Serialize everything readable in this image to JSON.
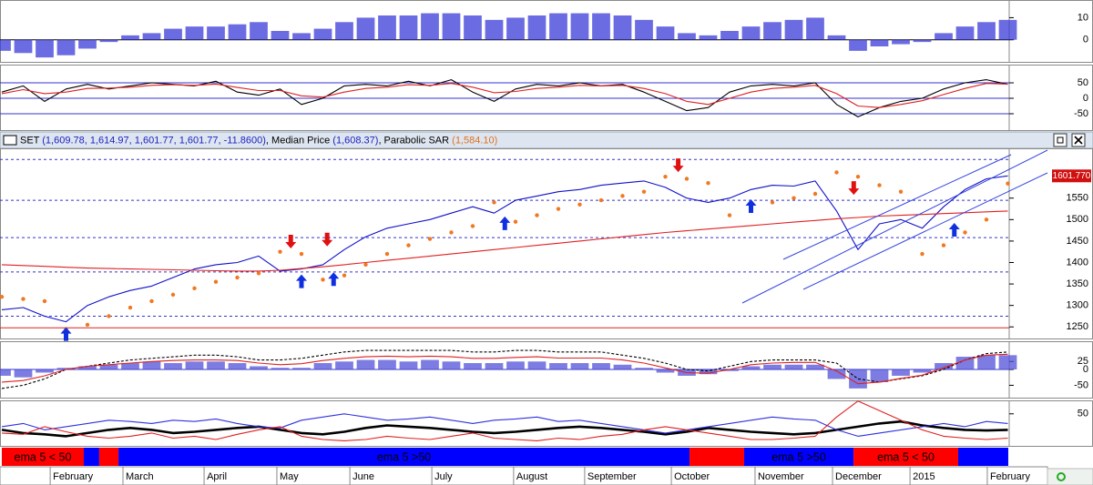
{
  "chart_data": [
    {
      "type": "bar",
      "ylim": [
        -10,
        18
      ],
      "yticks": [
        10,
        0
      ],
      "hlines": [
        {
          "value": 0,
          "color": "#000000"
        }
      ],
      "series": [
        {
          "color": "#3a3ad8",
          "style": "bars",
          "values": [
            -5,
            -6,
            -8,
            -7,
            -4,
            -1,
            2,
            3,
            5,
            6,
            6,
            7,
            8,
            4,
            3,
            5,
            8,
            10,
            11,
            11,
            12,
            12,
            11,
            9,
            10,
            11,
            12,
            12,
            12,
            11,
            9,
            6,
            3,
            2,
            4,
            6,
            8,
            9,
            10,
            2,
            -5,
            -3,
            -2,
            -1,
            3,
            6,
            8,
            9
          ]
        }
      ]
    },
    {
      "type": "line",
      "ylim": [
        -103,
        109
      ],
      "yticks": [
        50,
        0,
        -50
      ],
      "grid": true,
      "grid_color": "#3333cc",
      "series": [
        {
          "color": "#000000",
          "style": "line",
          "values": [
            20,
            40,
            -10,
            30,
            45,
            30,
            40,
            50,
            45,
            40,
            55,
            20,
            10,
            30,
            -20,
            0,
            40,
            45,
            40,
            55,
            40,
            60,
            20,
            -10,
            30,
            45,
            40,
            50,
            40,
            45,
            20,
            -10,
            -40,
            -30,
            20,
            40,
            45,
            40,
            50,
            -20,
            -60,
            -30,
            -10,
            0,
            30,
            50,
            60,
            45
          ]
        },
        {
          "color": "#e02020",
          "style": "line",
          "values": [
            15,
            28,
            15,
            20,
            32,
            33,
            36,
            42,
            44,
            42,
            46,
            35,
            25,
            25,
            8,
            4,
            20,
            32,
            36,
            44,
            42,
            48,
            36,
            18,
            22,
            32,
            36,
            42,
            40,
            42,
            32,
            15,
            -10,
            -20,
            0,
            20,
            32,
            36,
            42,
            15,
            -25,
            -30,
            -20,
            -8,
            12,
            32,
            48,
            46
          ]
        }
      ]
    },
    {
      "type": "line",
      "title_parts": [
        {
          "text": "SET",
          "color": "#000000"
        },
        {
          "text": " (1,609.78, 1,614.97, 1,601.77, 1,601.77, -11.8600)",
          "color": "#2020c0"
        },
        {
          "text": ", Median Price",
          "color": "#000000"
        },
        {
          "text": " (1,608.37)",
          "color": "#2020c0"
        },
        {
          "text": ", Parabolic SAR",
          "color": "#000000"
        },
        {
          "text": " (1,584.10)",
          "color": "#e07020"
        }
      ],
      "last_label": "1601.770",
      "ylim": [
        1223,
        1666
      ],
      "yticks": [
        1550,
        1500,
        1450,
        1400,
        1350,
        1300,
        1250
      ],
      "hlines": [
        {
          "value": 1640,
          "color": "#3333cc",
          "dash": true
        },
        {
          "value": 1545,
          "color": "#3333cc",
          "dash": true
        },
        {
          "value": 1458,
          "color": "#3333cc",
          "dash": true
        },
        {
          "value": 1378,
          "color": "#3333cc",
          "dash": true
        },
        {
          "value": 1275,
          "color": "#3333cc",
          "dash": true
        },
        {
          "value": 1248,
          "color": "#e02020"
        }
      ],
      "series": [
        {
          "color": "#1010c8",
          "style": "line",
          "values": [
            1290,
            1295,
            1275,
            1262,
            1300,
            1320,
            1335,
            1345,
            1365,
            1385,
            1395,
            1400,
            1415,
            1380,
            1385,
            1395,
            1430,
            1460,
            1480,
            1490,
            1500,
            1515,
            1530,
            1515,
            1545,
            1555,
            1565,
            1570,
            1580,
            1585,
            1590,
            1575,
            1550,
            1540,
            1550,
            1570,
            1580,
            1578,
            1590,
            1520,
            1430,
            1490,
            1500,
            1480,
            1530,
            1570,
            1595,
            1601.77
          ]
        },
        {
          "color": "#e02020",
          "style": "line",
          "values": [
            1395,
            1393,
            1391,
            1389,
            1387,
            1386,
            1385,
            1384,
            1383,
            1382,
            1381,
            1380,
            1380,
            1382,
            1386,
            1390,
            1395,
            1400,
            1405,
            1410,
            1415,
            1420,
            1425,
            1430,
            1435,
            1440,
            1445,
            1450,
            1455,
            1460,
            1465,
            1470,
            1474,
            1478,
            1482,
            1486,
            1490,
            1494,
            1498,
            1502,
            1505,
            1508,
            1510,
            1512,
            1514,
            1516,
            1518,
            1520
          ]
        },
        {
          "color": "#f07820",
          "style": "dots",
          "values": [
            1320,
            1315,
            1310,
            1245,
            1255,
            1275,
            1295,
            1310,
            1325,
            1340,
            1355,
            1365,
            1375,
            1425,
            1420,
            1360,
            1370,
            1395,
            1420,
            1440,
            1455,
            1470,
            1485,
            1540,
            1495,
            1510,
            1525,
            1535,
            1545,
            1555,
            1565,
            1600,
            1595,
            1585,
            1510,
            1525,
            1540,
            1550,
            1560,
            1610,
            1600,
            1580,
            1565,
            1420,
            1440,
            1470,
            1500,
            1584.1
          ]
        }
      ],
      "buy": [
        {
          "index": 3,
          "value": 1262
        },
        {
          "index": 14,
          "value": 1385
        },
        {
          "index": 15.5,
          "value": 1390
        },
        {
          "index": 23.5,
          "value": 1520
        },
        {
          "index": 35,
          "value": 1560
        },
        {
          "index": 44.5,
          "value": 1505
        }
      ],
      "sell": [
        {
          "index": 13.5,
          "value": 1420
        },
        {
          "index": 15.2,
          "value": 1425
        },
        {
          "index": 31.6,
          "value": 1598
        },
        {
          "index": 39.8,
          "value": 1545
        }
      ]
    },
    {
      "type": "bar",
      "ylim": [
        -89,
        89
      ],
      "yticks": [
        25,
        0,
        -50
      ],
      "hlines": [
        {
          "value": 0,
          "color": "#3333cc"
        }
      ],
      "series": [
        {
          "color": "#5050d8",
          "style": "bars",
          "values": [
            -20,
            -25,
            -10,
            5,
            10,
            15,
            20,
            25,
            20,
            25,
            25,
            20,
            10,
            5,
            5,
            20,
            25,
            30,
            30,
            25,
            30,
            25,
            20,
            20,
            25,
            25,
            20,
            20,
            20,
            15,
            5,
            -10,
            -20,
            -15,
            -5,
            10,
            15,
            15,
            15,
            -30,
            -60,
            -40,
            -20,
            -10,
            20,
            40,
            45,
            45
          ]
        },
        {
          "color": "#000000",
          "style": "dashed",
          "values": [
            -60,
            -50,
            -30,
            0,
            10,
            20,
            30,
            35,
            40,
            45,
            45,
            40,
            30,
            30,
            35,
            45,
            55,
            60,
            60,
            60,
            60,
            60,
            55,
            55,
            60,
            60,
            55,
            55,
            55,
            45,
            35,
            20,
            0,
            -5,
            10,
            25,
            30,
            30,
            30,
            20,
            -30,
            -40,
            -30,
            -20,
            0,
            30,
            50,
            55
          ]
        },
        {
          "color": "#e02020",
          "style": "line",
          "values": [
            -40,
            -35,
            -20,
            0,
            10,
            15,
            20,
            25,
            28,
            30,
            30,
            28,
            20,
            15,
            18,
            28,
            35,
            40,
            42,
            40,
            42,
            40,
            35,
            35,
            38,
            40,
            36,
            36,
            36,
            30,
            20,
            5,
            -10,
            -12,
            0,
            15,
            20,
            22,
            22,
            -5,
            -45,
            -40,
            -28,
            -18,
            5,
            30,
            45,
            48
          ]
        }
      ]
    },
    {
      "type": "line",
      "ylim": [
        0,
        71
      ],
      "yticks": [
        50
      ],
      "series": [
        {
          "color": "#000000",
          "style": "line",
          "width": 2.6,
          "values": [
            25,
            20,
            18,
            15,
            20,
            25,
            28,
            25,
            20,
            22,
            25,
            28,
            30,
            25,
            20,
            18,
            22,
            28,
            32,
            30,
            28,
            25,
            22,
            20,
            22,
            25,
            28,
            30,
            28,
            25,
            22,
            18,
            22,
            28,
            25,
            22,
            20,
            18,
            20,
            25,
            30,
            35,
            38,
            32,
            28,
            25,
            24,
            25
          ]
        },
        {
          "color": "#3030e0",
          "style": "line",
          "values": [
            30,
            35,
            25,
            30,
            35,
            40,
            38,
            35,
            40,
            38,
            42,
            35,
            30,
            28,
            40,
            45,
            50,
            45,
            40,
            42,
            45,
            40,
            35,
            40,
            42,
            45,
            38,
            40,
            35,
            30,
            25,
            20,
            25,
            30,
            35,
            40,
            45,
            42,
            40,
            25,
            15,
            20,
            25,
            30,
            35,
            30,
            38,
            35
          ]
        },
        {
          "color": "#e02020",
          "style": "line",
          "values": [
            20,
            18,
            30,
            22,
            15,
            12,
            15,
            20,
            12,
            15,
            10,
            18,
            25,
            30,
            15,
            10,
            8,
            10,
            15,
            12,
            10,
            15,
            20,
            12,
            10,
            8,
            12,
            10,
            15,
            18,
            25,
            30,
            25,
            20,
            15,
            10,
            10,
            12,
            15,
            45,
            70,
            55,
            40,
            25,
            15,
            12,
            10,
            12
          ]
        }
      ]
    },
    {
      "type": "timeline",
      "segments": [
        {
          "start": 0,
          "end": 3.83,
          "color": "#ff0000",
          "label": "ema 5 < 50"
        },
        {
          "start": 3.83,
          "end": 4.55,
          "color": "#0000ff"
        },
        {
          "start": 4.55,
          "end": 5.45,
          "color": "#ff0000"
        },
        {
          "start": 5.45,
          "end": 32.13,
          "color": "#0000ff",
          "label": "ema 5 >50"
        },
        {
          "start": 32.13,
          "end": 34.68,
          "color": "#ff0000"
        },
        {
          "start": 34.68,
          "end": 39.79,
          "color": "#0000ff",
          "label": "ema 5 >50"
        },
        {
          "start": 39.79,
          "end": 44.68,
          "color": "#ff0000",
          "label": "ema 5 < 50"
        },
        {
          "start": 44.68,
          "end": 47.02,
          "color": "#0000ff"
        }
      ],
      "xticks": [
        {
          "value": 2.26,
          "label": "February"
        },
        {
          "value": 5.66,
          "label": "March"
        },
        {
          "value": 9.45,
          "label": "April"
        },
        {
          "value": 12.85,
          "label": "May"
        },
        {
          "value": 16.26,
          "label": "June"
        },
        {
          "value": 20.09,
          "label": "July"
        },
        {
          "value": 23.91,
          "label": "August"
        },
        {
          "value": 27.23,
          "label": "September"
        },
        {
          "value": 31.28,
          "label": "October"
        },
        {
          "value": 35.19,
          "label": "November"
        },
        {
          "value": 38.81,
          "label": "December"
        },
        {
          "value": 42.43,
          "label": "2015"
        },
        {
          "value": 46.04,
          "label": "February"
        }
      ]
    }
  ]
}
